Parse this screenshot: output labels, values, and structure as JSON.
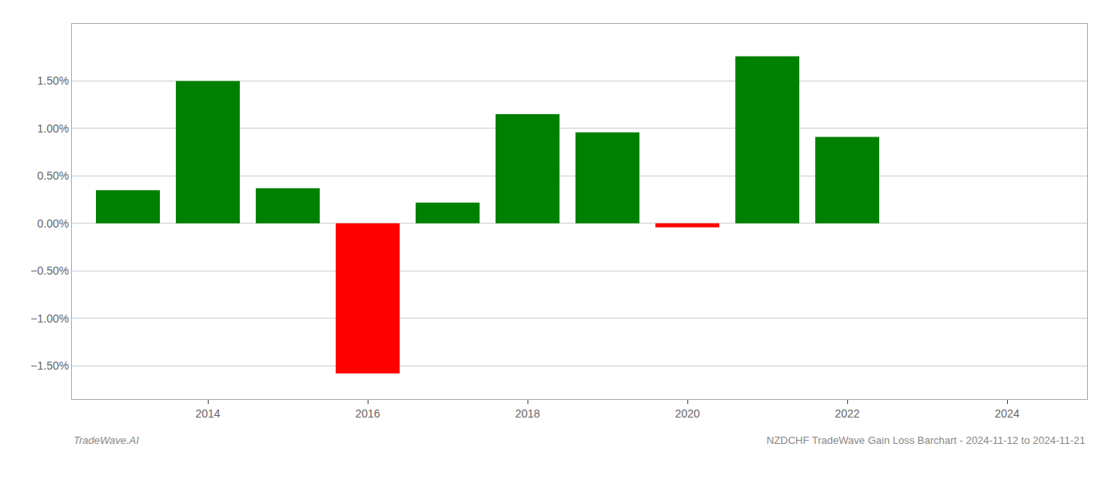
{
  "chart_data": {
    "type": "bar",
    "x": [
      2013,
      2014,
      2015,
      2016,
      2017,
      2018,
      2019,
      2020,
      2021,
      2022,
      2023
    ],
    "values": [
      0.35,
      1.5,
      0.37,
      -1.58,
      0.22,
      1.15,
      0.96,
      -0.04,
      1.76,
      0.91,
      0.0
    ],
    "colors": [
      "#008000",
      "#008000",
      "#008000",
      "#ff0000",
      "#008000",
      "#008000",
      "#008000",
      "#ff0000",
      "#008000",
      "#008000",
      "#008000"
    ],
    "xlim": [
      2012.3,
      2025.0
    ],
    "xticks": [
      2014,
      2016,
      2018,
      2020,
      2022,
      2024
    ],
    "ylim": [
      -1.85,
      2.1
    ],
    "yticks": [
      {
        "value": -1.5,
        "label": "−1.50%"
      },
      {
        "value": -1.0,
        "label": "−1.00%"
      },
      {
        "value": -0.5,
        "label": "−0.50%"
      },
      {
        "value": 0.0,
        "label": "0.00%"
      },
      {
        "value": 0.5,
        "label": "0.50%"
      },
      {
        "value": 1.0,
        "label": "1.00%"
      },
      {
        "value": 1.5,
        "label": "1.50%"
      }
    ],
    "grid": true,
    "annotations": [
      "TradeWave.AI",
      "NZDCHF TradeWave Gain Loss Barchart - 2024-11-12 to 2024-11-21"
    ]
  }
}
